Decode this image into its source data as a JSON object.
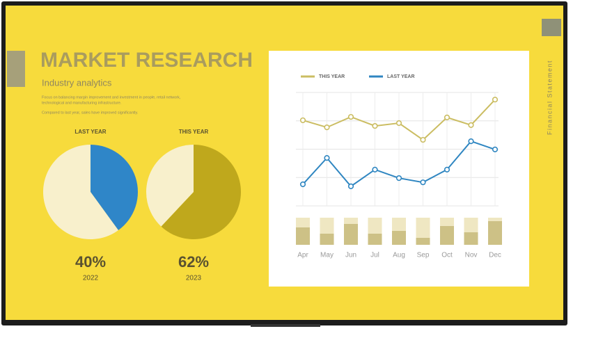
{
  "header": {
    "title": "MARKET RESEARCH",
    "subtitle": "Industry analytics",
    "paragraphs": [
      "Focus on balancing margin improvement and investment in people, retail network,",
      "technological and manufacturing infrastructure.",
      "Compared to last year, sales have improved significantly."
    ],
    "side_label": "Financial Statement"
  },
  "chart_data": [
    {
      "type": "pie",
      "title": "LAST YEAR",
      "subtitle": "2022",
      "values": [
        40,
        60
      ],
      "value_labels": [
        "40%",
        null
      ],
      "colors": [
        "#2f86c8",
        "#f8f0cc"
      ]
    },
    {
      "type": "pie",
      "title": "THIS YEAR",
      "subtitle": "2023",
      "values": [
        62,
        38
      ],
      "value_labels": [
        "62%",
        null
      ],
      "colors": [
        "#bfa81c",
        "#f8f0cc"
      ]
    },
    {
      "type": "line",
      "categories": [
        "Apr",
        "May",
        "Jun",
        "Jul",
        "Aug",
        "Sep",
        "Oct",
        "Nov",
        "Dec"
      ],
      "series": [
        {
          "name": "THIS YEAR",
          "color": "#cbbd62",
          "values": [
            3.02,
            2.77,
            3.14,
            2.82,
            2.92,
            2.33,
            3.12,
            2.85,
            3.75
          ]
        },
        {
          "name": "LAST YEAR",
          "color": "#2f86c1",
          "values": [
            0.76,
            1.69,
            0.69,
            1.28,
            0.98,
            0.83,
            1.28,
            2.28,
            1.99
          ]
        }
      ],
      "ylim": [
        0,
        4
      ],
      "yticks": [
        0,
        1,
        2,
        3,
        4
      ],
      "show_tick_labels": false,
      "grid": true
    },
    {
      "type": "bar",
      "categories": [
        null,
        null,
        null,
        null,
        null,
        null,
        null,
        null,
        null
      ],
      "stacked": true,
      "series": [
        {
          "color": "#cdc186",
          "values": [
            25,
            16,
            30,
            16,
            20,
            10,
            27,
            18,
            34
          ]
        },
        {
          "color": "#efe7c2",
          "values": [
            14,
            23,
            9,
            23,
            19,
            29,
            12,
            21,
            5
          ]
        }
      ],
      "ylim": [
        0,
        39
      ]
    }
  ]
}
